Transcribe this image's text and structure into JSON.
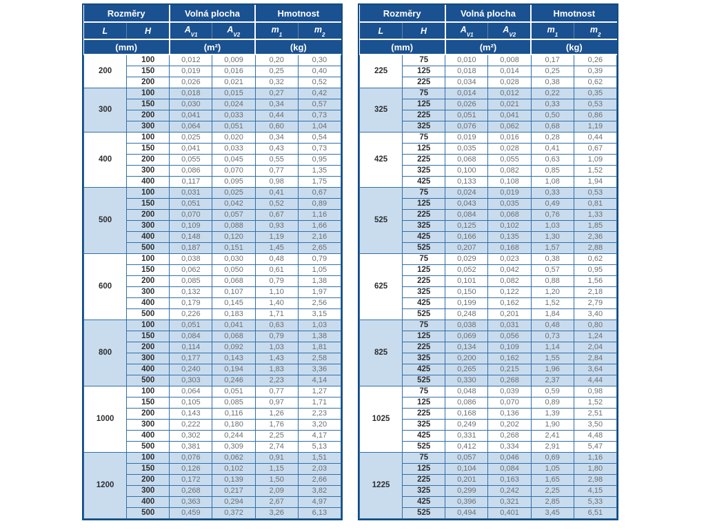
{
  "colors": {
    "header-bg": "#1a5190",
    "header-text": "#ffffff",
    "row-shaded-bg": "#c9dcee",
    "grid-border": "#2f6da6",
    "outer-border": "#134b82",
    "dim-text": "#2c2d2f",
    "value-text": "#6b6d70"
  },
  "header": {
    "group_dimensions": "Rozměry",
    "group_free_area": "Volná plocha",
    "group_weight": "Hmotnost",
    "col_l": "L",
    "col_h": "H",
    "a_base": "A",
    "a_sub_v1": "V1",
    "a_sub_v2": "V2",
    "m_base": "m",
    "m_sub_1": "1",
    "m_sub_2": "2",
    "unit_mm": "(mm)",
    "unit_m2": "(m²)",
    "unit_kg": "(kg)"
  },
  "tables": [
    {
      "groups": [
        {
          "L": "200",
          "rows": [
            [
              "100",
              "0,012",
              "0,009",
              "0,20",
              "0,30"
            ],
            [
              "150",
              "0,019",
              "0,016",
              "0,25",
              "0,40"
            ],
            [
              "200",
              "0,026",
              "0,021",
              "0,32",
              "0,52"
            ]
          ]
        },
        {
          "L": "300",
          "rows": [
            [
              "100",
              "0,018",
              "0,015",
              "0,27",
              "0,42"
            ],
            [
              "150",
              "0,030",
              "0,024",
              "0,34",
              "0,57"
            ],
            [
              "200",
              "0,041",
              "0,033",
              "0,44",
              "0,73"
            ],
            [
              "300",
              "0,064",
              "0,051",
              "0,60",
              "1,04"
            ]
          ]
        },
        {
          "L": "400",
          "rows": [
            [
              "100",
              "0,025",
              "0,020",
              "0,34",
              "0,54"
            ],
            [
              "150",
              "0,041",
              "0,033",
              "0,43",
              "0,73"
            ],
            [
              "200",
              "0,055",
              "0,045",
              "0,55",
              "0,95"
            ],
            [
              "300",
              "0,086",
              "0,070",
              "0,77",
              "1,35"
            ],
            [
              "400",
              "0,117",
              "0,095",
              "0,98",
              "1,75"
            ]
          ]
        },
        {
          "L": "500",
          "rows": [
            [
              "100",
              "0,031",
              "0,025",
              "0,41",
              "0,67"
            ],
            [
              "150",
              "0,051",
              "0,042",
              "0,52",
              "0,89"
            ],
            [
              "200",
              "0,070",
              "0,057",
              "0,67",
              "1,16"
            ],
            [
              "300",
              "0,109",
              "0,088",
              "0,93",
              "1,66"
            ],
            [
              "400",
              "0,148",
              "0,120",
              "1,19",
              "2,16"
            ],
            [
              "500",
              "0,187",
              "0,151",
              "1,45",
              "2,65"
            ]
          ]
        },
        {
          "L": "600",
          "rows": [
            [
              "100",
              "0,038",
              "0,030",
              "0,48",
              "0,79"
            ],
            [
              "150",
              "0,062",
              "0,050",
              "0,61",
              "1,05"
            ],
            [
              "200",
              "0,085",
              "0,068",
              "0,79",
              "1,38"
            ],
            [
              "300",
              "0,132",
              "0,107",
              "1,10",
              "1,97"
            ],
            [
              "400",
              "0,179",
              "0,145",
              "1,40",
              "2,56"
            ],
            [
              "500",
              "0,226",
              "0,183",
              "1,71",
              "3,15"
            ]
          ]
        },
        {
          "L": "800",
          "rows": [
            [
              "100",
              "0,051",
              "0,041",
              "0,63",
              "1,03"
            ],
            [
              "150",
              "0,084",
              "0,068",
              "0,79",
              "1,38"
            ],
            [
              "200",
              "0,114",
              "0,092",
              "1,03",
              "1,81"
            ],
            [
              "300",
              "0,177",
              "0,143",
              "1,43",
              "2,58"
            ],
            [
              "400",
              "0,240",
              "0,194",
              "1,83",
              "3,36"
            ],
            [
              "500",
              "0,303",
              "0,246",
              "2,23",
              "4,14"
            ]
          ]
        },
        {
          "L": "1000",
          "rows": [
            [
              "100",
              "0,064",
              "0,051",
              "0,77",
              "1,27"
            ],
            [
              "150",
              "0,105",
              "0,085",
              "0,97",
              "1,71"
            ],
            [
              "200",
              "0,143",
              "0,116",
              "1,26",
              "2,23"
            ],
            [
              "300",
              "0,222",
              "0,180",
              "1,76",
              "3,20"
            ],
            [
              "400",
              "0,302",
              "0,244",
              "2,25",
              "4,17"
            ],
            [
              "500",
              "0,381",
              "0,309",
              "2,74",
              "5,13"
            ]
          ]
        },
        {
          "L": "1200",
          "rows": [
            [
              "100",
              "0,076",
              "0,062",
              "0,91",
              "1,51"
            ],
            [
              "150",
              "0,126",
              "0,102",
              "1,15",
              "2,03"
            ],
            [
              "200",
              "0,172",
              "0,139",
              "1,50",
              "2,66"
            ],
            [
              "300",
              "0,268",
              "0,217",
              "2,09",
              "3,82"
            ],
            [
              "400",
              "0,363",
              "0,294",
              "2,67",
              "4,97"
            ],
            [
              "500",
              "0,459",
              "0,372",
              "3,26",
              "6,13"
            ]
          ]
        }
      ]
    },
    {
      "groups": [
        {
          "L": "225",
          "rows": [
            [
              "75",
              "0,010",
              "0,008",
              "0,17",
              "0,26"
            ],
            [
              "125",
              "0,018",
              "0,014",
              "0,25",
              "0,39"
            ],
            [
              "225",
              "0,034",
              "0,028",
              "0,38",
              "0,62"
            ]
          ]
        },
        {
          "L": "325",
          "rows": [
            [
              "75",
              "0,014",
              "0,012",
              "0,22",
              "0,35"
            ],
            [
              "125",
              "0,026",
              "0,021",
              "0,33",
              "0,53"
            ],
            [
              "225",
              "0,051",
              "0,041",
              "0,50",
              "0,86"
            ],
            [
              "325",
              "0,076",
              "0,062",
              "0,68",
              "1,19"
            ]
          ]
        },
        {
          "L": "425",
          "rows": [
            [
              "75",
              "0,019",
              "0,016",
              "0,28",
              "0,44"
            ],
            [
              "125",
              "0,035",
              "0,028",
              "0,41",
              "0,67"
            ],
            [
              "225",
              "0,068",
              "0,055",
              "0,63",
              "1,09"
            ],
            [
              "325",
              "0,100",
              "0,082",
              "0,85",
              "1,52"
            ],
            [
              "425",
              "0,133",
              "0,108",
              "1,08",
              "1,94"
            ]
          ]
        },
        {
          "L": "525",
          "rows": [
            [
              "75",
              "0,024",
              "0,019",
              "0,33",
              "0,53"
            ],
            [
              "125",
              "0,043",
              "0,035",
              "0,49",
              "0,81"
            ],
            [
              "225",
              "0,084",
              "0,068",
              "0,76",
              "1,33"
            ],
            [
              "325",
              "0,125",
              "0,102",
              "1,03",
              "1,85"
            ],
            [
              "425",
              "0,166",
              "0,135",
              "1,30",
              "2,36"
            ],
            [
              "525",
              "0,207",
              "0,168",
              "1,57",
              "2,88"
            ]
          ]
        },
        {
          "L": "625",
          "rows": [
            [
              "75",
              "0,029",
              "0,023",
              "0,38",
              "0,62"
            ],
            [
              "125",
              "0,052",
              "0,042",
              "0,57",
              "0,95"
            ],
            [
              "225",
              "0,101",
              "0,082",
              "0,88",
              "1,56"
            ],
            [
              "325",
              "0,150",
              "0,122",
              "1,20",
              "2,18"
            ],
            [
              "425",
              "0,199",
              "0,162",
              "1,52",
              "2,79"
            ],
            [
              "525",
              "0,248",
              "0,201",
              "1,84",
              "3,40"
            ]
          ]
        },
        {
          "L": "825",
          "rows": [
            [
              "75",
              "0,038",
              "0,031",
              "0,48",
              "0,80"
            ],
            [
              "125",
              "0,069",
              "0,056",
              "0,73",
              "1,24"
            ],
            [
              "225",
              "0,134",
              "0,109",
              "1,14",
              "2,04"
            ],
            [
              "325",
              "0,200",
              "0,162",
              "1,55",
              "2,84"
            ],
            [
              "425",
              "0,265",
              "0,215",
              "1,96",
              "3,64"
            ],
            [
              "525",
              "0,330",
              "0,268",
              "2,37",
              "4,44"
            ]
          ]
        },
        {
          "L": "1025",
          "rows": [
            [
              "75",
              "0,048",
              "0,039",
              "0,59",
              "0,98"
            ],
            [
              "125",
              "0,086",
              "0,070",
              "0,89",
              "1,52"
            ],
            [
              "225",
              "0,168",
              "0,136",
              "1,39",
              "2,51"
            ],
            [
              "325",
              "0,249",
              "0,202",
              "1,90",
              "3,50"
            ],
            [
              "425",
              "0,331",
              "0,268",
              "2,41",
              "4,48"
            ],
            [
              "525",
              "0,412",
              "0,334",
              "2,91",
              "5,47"
            ]
          ]
        },
        {
          "L": "1225",
          "rows": [
            [
              "75",
              "0,057",
              "0,046",
              "0,69",
              "1,16"
            ],
            [
              "125",
              "0,104",
              "0,084",
              "1,05",
              "1,80"
            ],
            [
              "225",
              "0,201",
              "0,163",
              "1,65",
              "2,98"
            ],
            [
              "325",
              "0,299",
              "0,242",
              "2,25",
              "4,15"
            ],
            [
              "425",
              "0,396",
              "0,321",
              "2,85",
              "5,33"
            ],
            [
              "525",
              "0,494",
              "0,401",
              "3,45",
              "6,51"
            ]
          ]
        }
      ]
    }
  ]
}
